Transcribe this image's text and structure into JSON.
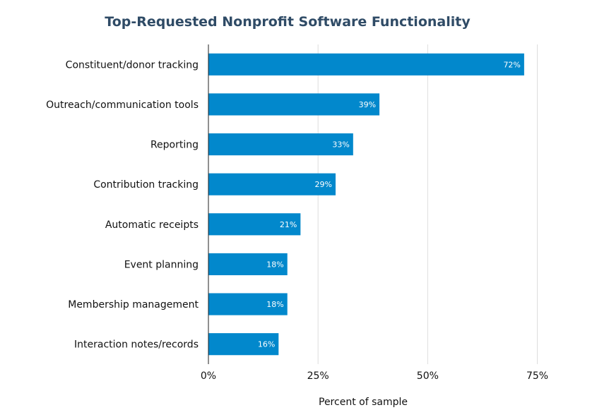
{
  "chart_data": {
    "type": "bar",
    "orientation": "horizontal",
    "title": "Top-Requested Nonprofit Software Functionality",
    "xlabel": "Percent of sample",
    "ylabel": "",
    "categories": [
      "Constituent/donor tracking",
      "Outreach/communication tools",
      "Reporting",
      "Contribution tracking",
      "Automatic receipts",
      "Event planning",
      "Membership management",
      "Interaction notes/records"
    ],
    "values": [
      72,
      39,
      33,
      29,
      21,
      18,
      18,
      16
    ],
    "data_labels": [
      "72%",
      "39%",
      "33%",
      "29%",
      "21%",
      "18%",
      "18%",
      "16%"
    ],
    "xlim": [
      0,
      87
    ],
    "x_ticks": [
      0,
      25,
      50,
      75
    ],
    "x_tick_labels": [
      "0%",
      "25%",
      "50%",
      "75%"
    ],
    "grid": true,
    "legend": "none",
    "bar_color": "#0288cc"
  }
}
